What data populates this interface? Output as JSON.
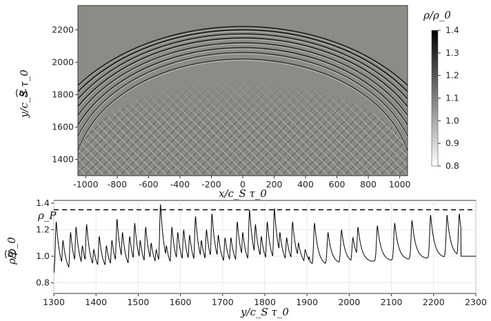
{
  "chart_data": [
    {
      "panel_label": "(a)",
      "type": "heatmap",
      "xlabel": "x/c_S τ_0",
      "ylabel": "y/c_S τ_0",
      "xlim": [
        -1050,
        1050
      ],
      "ylim": [
        1300,
        2350
      ],
      "xticks": [
        "-1000",
        "-800",
        "-600",
        "-400",
        "-200",
        "0",
        "200",
        "400",
        "600",
        "800",
        "1000"
      ],
      "yticks": [
        "1400",
        "1600",
        "1800",
        "2000",
        "2200"
      ],
      "colorbar": {
        "title": "ρ/ρ_0",
        "range": [
          0.8,
          1.4
        ],
        "ticks": [
          "0.8",
          "0.9",
          "1.0",
          "1.1",
          "1.2",
          "1.3",
          "1.4"
        ],
        "colormap": "grayscale, white at 0.8 to black at 1.4"
      },
      "background_color": "#8c8c86",
      "shock_fronts_apex_y": [
        2220,
        2200,
        2175,
        2150,
        2120,
        2090,
        2060,
        2020
      ]
    },
    {
      "panel_label": "(b)",
      "type": "line",
      "xlabel": "y/c_S τ_0",
      "ylabel": "ρ/ρ_0",
      "xlim": [
        1300,
        2300
      ],
      "ylim": [
        0.72,
        1.42
      ],
      "xticks": [
        "1300",
        "1400",
        "1500",
        "1600",
        "1700",
        "1800",
        "1900",
        "2000",
        "2100",
        "2200",
        "2300"
      ],
      "yticks": [
        "0.8",
        "1.0",
        "1.2",
        "1.4"
      ],
      "grid": true,
      "reference_line": {
        "label": "ρ_P",
        "y": 1.35,
        "style": "dashed"
      },
      "peaks": [
        [
          1306,
          1.26
        ],
        [
          1322,
          1.12
        ],
        [
          1340,
          1.18
        ],
        [
          1353,
          1.22
        ],
        [
          1368,
          1.08
        ],
        [
          1378,
          1.24
        ],
        [
          1395,
          1.05
        ],
        [
          1408,
          1.15
        ],
        [
          1425,
          1.08
        ],
        [
          1438,
          1.12
        ],
        [
          1450,
          1.28
        ],
        [
          1463,
          1.18
        ],
        [
          1480,
          1.15
        ],
        [
          1492,
          1.25
        ],
        [
          1505,
          1.12
        ],
        [
          1518,
          1.22
        ],
        [
          1531,
          1.1
        ],
        [
          1543,
          1.05
        ],
        [
          1553,
          1.39
        ],
        [
          1567,
          1.08
        ],
        [
          1580,
          1.22
        ],
        [
          1594,
          1.18
        ],
        [
          1608,
          1.2
        ],
        [
          1622,
          1.16
        ],
        [
          1636,
          1.3
        ],
        [
          1650,
          1.12
        ],
        [
          1662,
          1.2
        ],
        [
          1675,
          1.32
        ],
        [
          1690,
          1.16
        ],
        [
          1706,
          1.14
        ],
        [
          1720,
          1.14
        ],
        [
          1735,
          1.26
        ],
        [
          1748,
          1.18
        ],
        [
          1764,
          1.35
        ],
        [
          1778,
          1.24
        ],
        [
          1792,
          1.15
        ],
        [
          1806,
          1.26
        ],
        [
          1823,
          1.36
        ],
        [
          1836,
          1.18
        ],
        [
          1852,
          1.14
        ],
        [
          1866,
          1.26
        ],
        [
          1880,
          1.1
        ],
        [
          1896,
          1.05
        ],
        [
          1918,
          1.25
        ],
        [
          1950,
          1.18
        ],
        [
          1982,
          1.2
        ],
        [
          2009,
          1.14
        ],
        [
          2021,
          1.22
        ],
        [
          2067,
          1.23
        ],
        [
          2108,
          1.25
        ],
        [
          2149,
          1.27
        ],
        [
          2193,
          1.31
        ],
        [
          2232,
          1.31
        ],
        [
          2261,
          1.32
        ]
      ],
      "final_level": {
        "from_x": 2265,
        "y": 1.0
      }
    }
  ]
}
